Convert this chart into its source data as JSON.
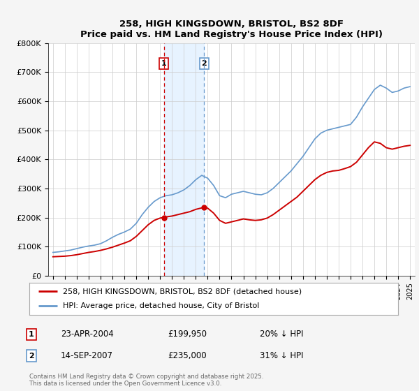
{
  "title": "258, HIGH KINGSDOWN, BRISTOL, BS2 8DF",
  "subtitle": "Price paid vs. HM Land Registry's House Price Index (HPI)",
  "ylabel_ticks": [
    "£0",
    "£100K",
    "£200K",
    "£300K",
    "£400K",
    "£500K",
    "£600K",
    "£700K",
    "£800K"
  ],
  "ytick_values": [
    0,
    100000,
    200000,
    300000,
    400000,
    500000,
    600000,
    700000,
    800000
  ],
  "ylim": [
    0,
    800000
  ],
  "xlim_start": 1994.6,
  "xlim_end": 2025.4,
  "annotation1": {
    "label": "1",
    "date_str": "23-APR-2004",
    "price": "£199,950",
    "hpi_diff": "20% ↓ HPI",
    "x_year": 2004.31,
    "price_val": 199950
  },
  "annotation2": {
    "label": "2",
    "date_str": "14-SEP-2007",
    "price": "£235,000",
    "hpi_diff": "31% ↓ HPI",
    "x_year": 2007.71,
    "price_val": 235000
  },
  "legend_line1": "258, HIGH KINGSDOWN, BRISTOL, BS2 8DF (detached house)",
  "legend_line2": "HPI: Average price, detached house, City of Bristol",
  "footnote": "Contains HM Land Registry data © Crown copyright and database right 2025.\nThis data is licensed under the Open Government Licence v3.0.",
  "red_color": "#cc0000",
  "blue_color": "#6699cc",
  "shade_color": "#ddeeff",
  "background_color": "#f5f5f5",
  "plot_bg_color": "#ffffff",
  "grid_color": "#cccccc"
}
